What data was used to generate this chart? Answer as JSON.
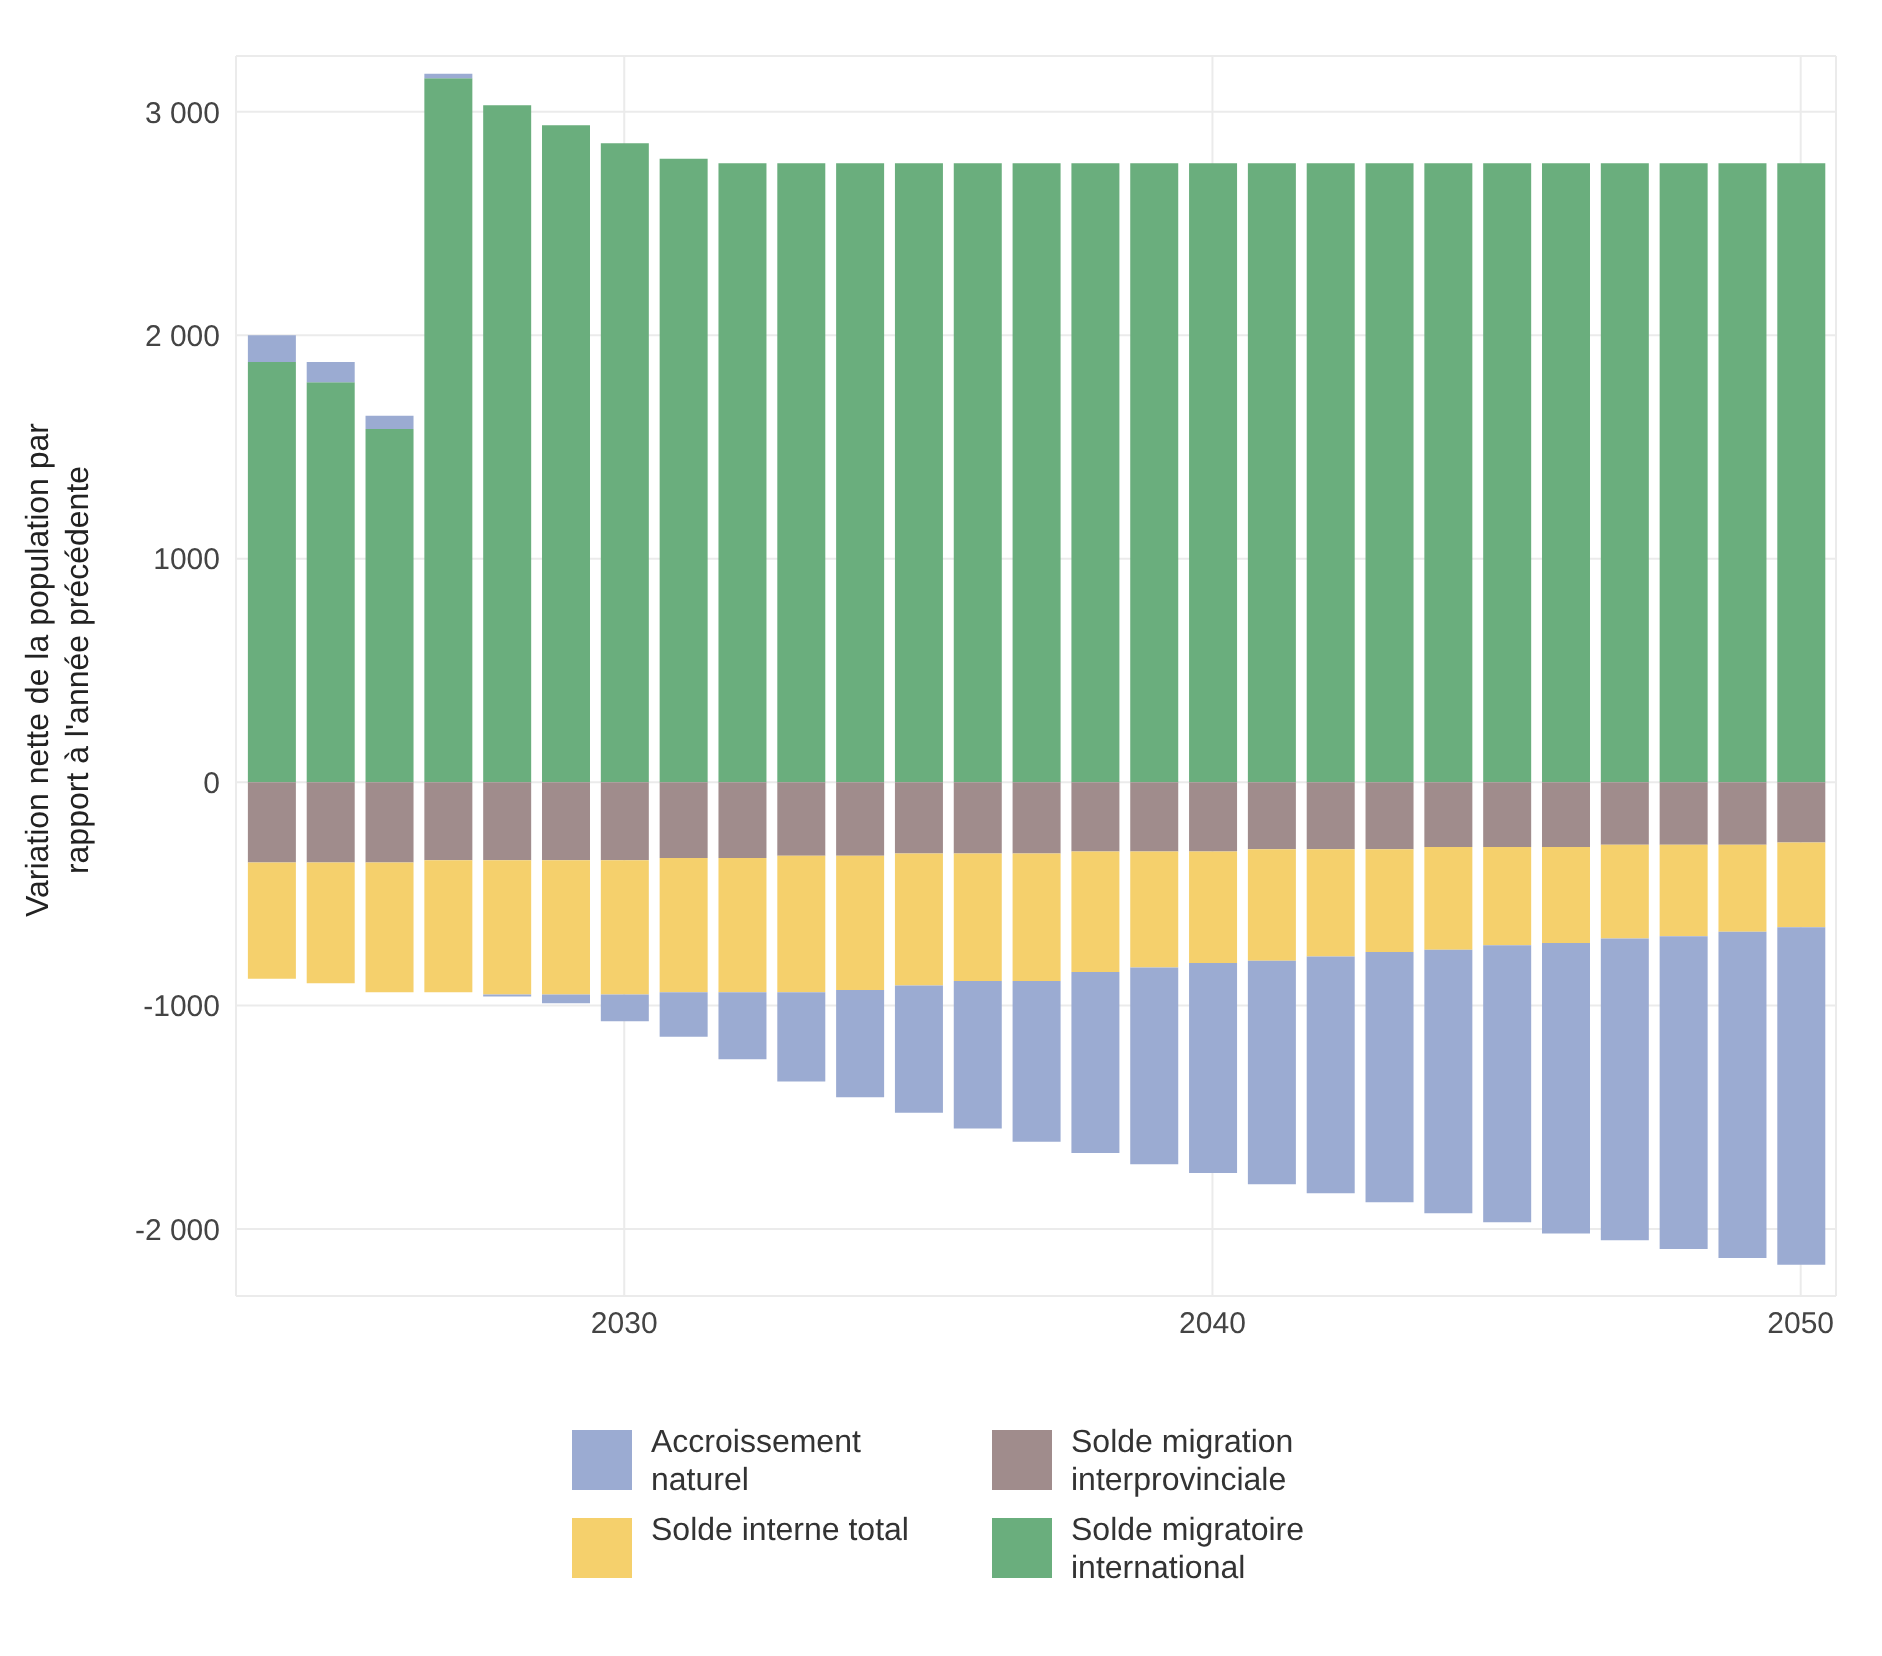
{
  "chart_data": {
    "type": "bar",
    "stacked": true,
    "ylabel": "Variation nette de la population par rapport à l'année précédente",
    "x": [
      2024,
      2025,
      2026,
      2027,
      2028,
      2029,
      2030,
      2031,
      2032,
      2033,
      2034,
      2035,
      2036,
      2037,
      2038,
      2039,
      2040,
      2041,
      2042,
      2043,
      2044,
      2045,
      2046,
      2047,
      2048,
      2049,
      2050
    ],
    "series": [
      {
        "name": "Solde migratoire international",
        "color": "#6aae7d",
        "values": [
          1880,
          1790,
          1580,
          3150,
          3030,
          2940,
          2860,
          2790,
          2770,
          2770,
          2770,
          2770,
          2770,
          2770,
          2770,
          2770,
          2770,
          2770,
          2770,
          2770,
          2770,
          2770,
          2770,
          2770,
          2770,
          2770,
          2770
        ]
      },
      {
        "name": "Solde migration interprovinciale",
        "color": "#a08c8c",
        "values": [
          -360,
          -360,
          -360,
          -350,
          -350,
          -350,
          -350,
          -340,
          -340,
          -330,
          -330,
          -320,
          -320,
          -320,
          -310,
          -310,
          -310,
          -300,
          -300,
          -300,
          -290,
          -290,
          -290,
          -280,
          -280,
          -280,
          -270
        ]
      },
      {
        "name": "Solde interne total",
        "color": "#f5d06c",
        "values": [
          -520,
          -540,
          -580,
          -590,
          -600,
          -600,
          -600,
          -600,
          -600,
          -610,
          -600,
          -590,
          -570,
          -570,
          -540,
          -520,
          -500,
          -500,
          -480,
          -460,
          -460,
          -440,
          -430,
          -420,
          -410,
          -390,
          -380
        ]
      },
      {
        "name": "Accroissement naturel",
        "color": "#9babd2",
        "values": [
          120,
          90,
          60,
          20,
          -10,
          -40,
          -120,
          -200,
          -300,
          -400,
          -480,
          -570,
          -660,
          -720,
          -810,
          -880,
          -940,
          -1000,
          -1060,
          -1120,
          -1180,
          -1240,
          -1300,
          -1350,
          -1400,
          -1460,
          -1510
        ]
      }
    ],
    "xlim": [
      2023.4,
      2050.6
    ],
    "xticks": [
      2030,
      2040,
      2050
    ],
    "ylim": [
      -2300,
      3250
    ],
    "yticks": [
      {
        "value": -2000,
        "label": "-2 000"
      },
      -1000,
      0,
      1000,
      {
        "value": 2000,
        "label": "2 000"
      },
      {
        "value": 3000,
        "label": "3 000"
      }
    ],
    "grid": true,
    "legend": "bottom"
  }
}
